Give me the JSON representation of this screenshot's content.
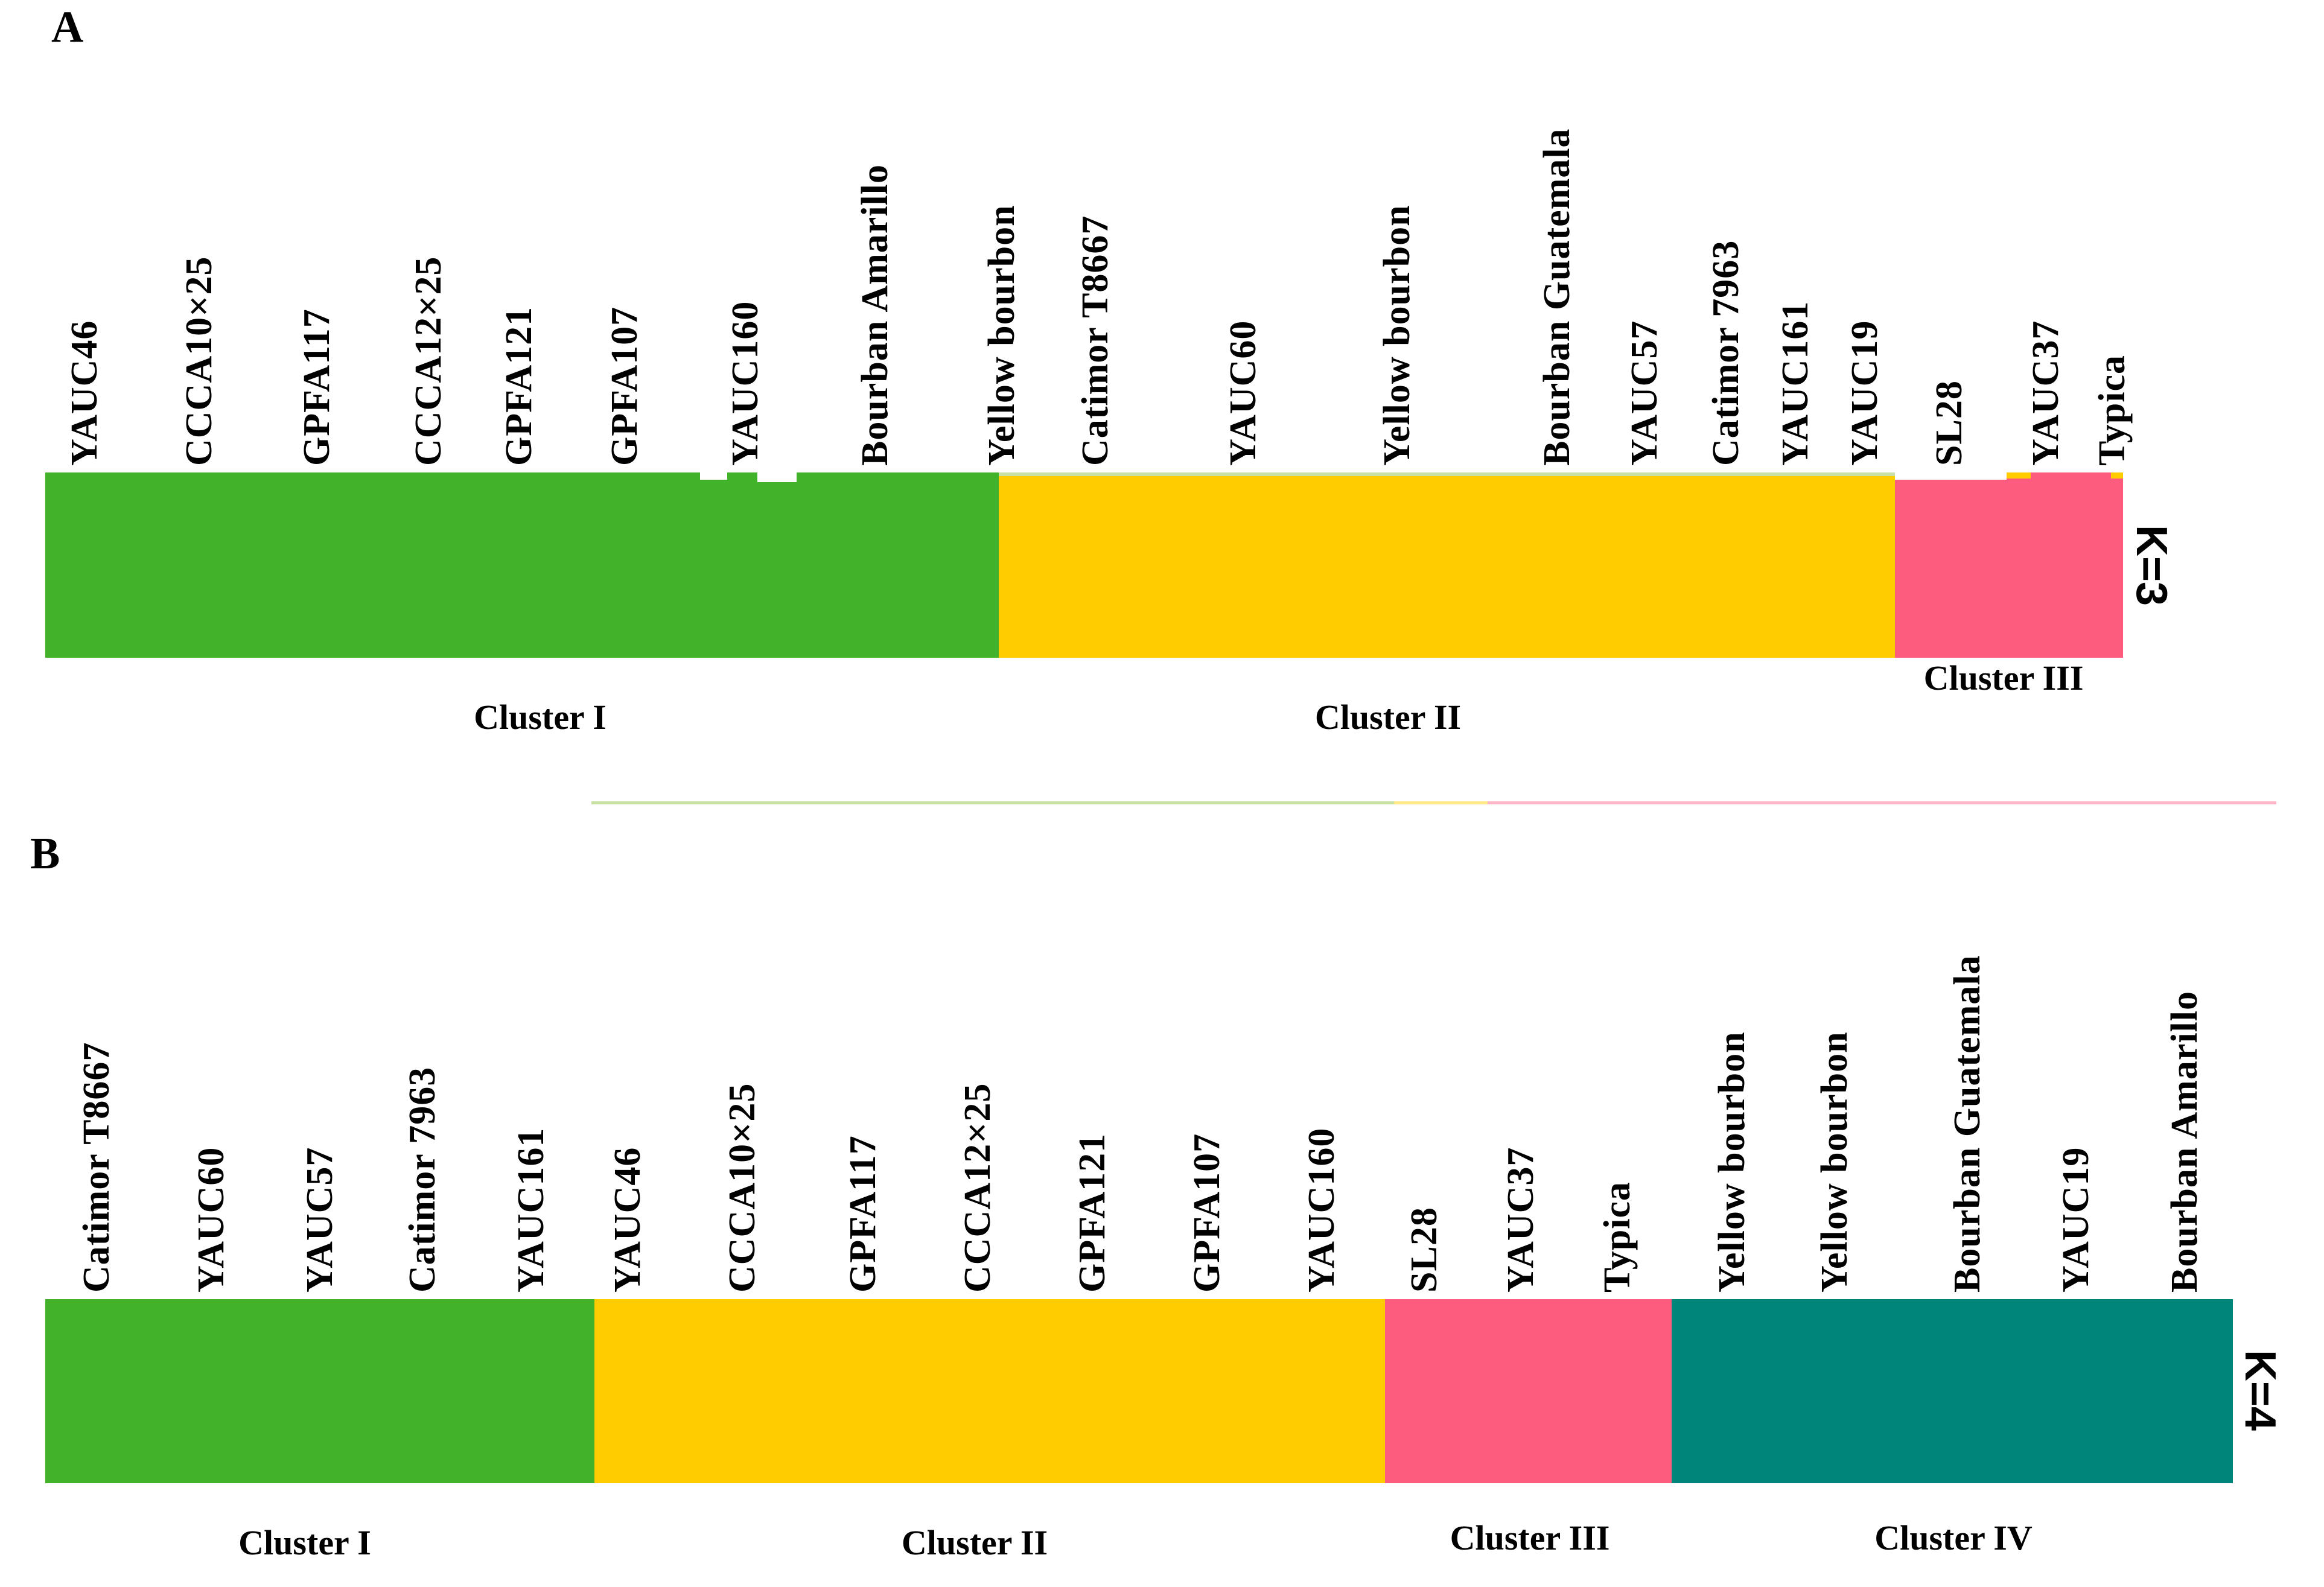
{
  "figure": {
    "colors": {
      "green": "#42b22b",
      "yellow": "#ffcc00",
      "pink": "#fd5c7f",
      "teal": "#00857b",
      "light_green": "#c9e0a4",
      "light_yellow": "#ffe785",
      "light_pink": "#ffb7c8",
      "white": "#ffffff"
    },
    "panel_a": {
      "letter": "A",
      "k_label": "K=3",
      "clusters": [
        {
          "label": "Cluster I",
          "color_key": "green",
          "samples": [
            "YAUC46",
            "CCCA10×25",
            "GPFA117",
            "CCCA12×25",
            "GPFA121",
            "GPFA107",
            "YAUC160",
            "Bourban Amarillo"
          ]
        },
        {
          "label": "Cluster II",
          "color_key": "yellow",
          "samples": [
            "Yellow bourbon",
            "Catimor T8667",
            "YAUC60",
            "Yellow bourbon",
            "Bourban Guatemala",
            "YAUC57",
            "Catimor 7963",
            "YAUC161",
            "YAUC19"
          ]
        },
        {
          "label": "Cluster III",
          "color_key": "pink",
          "samples": [
            "SL28",
            "YAUC37",
            "Typica"
          ]
        }
      ]
    },
    "panel_b": {
      "letter": "B",
      "k_label": "K=4",
      "clusters": [
        {
          "label": "Cluster I",
          "color_key": "green",
          "samples": [
            "Catimor T8667",
            "YAUC60",
            "YAUC57",
            "Catimor 7963",
            "YAUC161"
          ]
        },
        {
          "label": "Cluster II",
          "color_key": "yellow",
          "samples": [
            "YAUC46",
            "CCCA10×25",
            "GPFA117",
            "CCCA12×25",
            "GPFA121",
            "GPFA107",
            "YAUC160"
          ]
        },
        {
          "label": "Cluster III",
          "color_key": "pink",
          "samples": [
            "SL28",
            "YAUC37",
            "Typica"
          ]
        },
        {
          "label": "Cluster IV",
          "color_key": "teal",
          "samples": [
            "Yellow bourbon",
            "Yellow bourbon",
            "Bourban Guatemala",
            "YAUC19",
            "Bourban Amarillo"
          ]
        }
      ]
    }
  },
  "chart_data": [
    {
      "type": "bar",
      "title": "K=3",
      "categories": [
        "YAUC46",
        "CCCA10×25",
        "GPFA117",
        "CCCA12×25",
        "GPFA121",
        "GPFA107",
        "YAUC160",
        "Bourban Amarillo",
        "Yellow bourbon",
        "Catimor T8667",
        "YAUC60",
        "Yellow bourbon",
        "Bourban Guatemala",
        "YAUC57",
        "Catimor 7963",
        "YAUC161",
        "YAUC19",
        "SL28",
        "YAUC37",
        "Typica"
      ],
      "assignments": [
        "Cluster I",
        "Cluster I",
        "Cluster I",
        "Cluster I",
        "Cluster I",
        "Cluster I",
        "Cluster I",
        "Cluster I",
        "Cluster II",
        "Cluster II",
        "Cluster II",
        "Cluster II",
        "Cluster II",
        "Cluster II",
        "Cluster II",
        "Cluster II",
        "Cluster II",
        "Cluster III",
        "Cluster III",
        "Cluster III"
      ],
      "values": [
        1,
        1,
        1,
        1,
        1,
        1,
        1,
        1,
        2,
        2,
        2,
        2,
        2,
        2,
        2,
        2,
        2,
        3,
        3,
        3
      ],
      "series": [
        {
          "name": "Cluster I",
          "color": "#42b22b"
        },
        {
          "name": "Cluster II",
          "color": "#ffcc00"
        },
        {
          "name": "Cluster III",
          "color": "#fd5c7f"
        }
      ],
      "xlabel": "",
      "ylabel": "",
      "legend_position": "none",
      "grid": false
    },
    {
      "type": "bar",
      "title": "K=4",
      "categories": [
        "Catimor T8667",
        "YAUC60",
        "YAUC57",
        "Catimor 7963",
        "YAUC161",
        "YAUC46",
        "CCCA10×25",
        "GPFA117",
        "CCCA12×25",
        "GPFA121",
        "GPFA107",
        "YAUC160",
        "SL28",
        "YAUC37",
        "Typica",
        "Yellow bourbon",
        "Yellow bourbon",
        "Bourban Guatemala",
        "YAUC19",
        "Bourban Amarillo"
      ],
      "assignments": [
        "Cluster I",
        "Cluster I",
        "Cluster I",
        "Cluster I",
        "Cluster I",
        "Cluster II",
        "Cluster II",
        "Cluster II",
        "Cluster II",
        "Cluster II",
        "Cluster II",
        "Cluster II",
        "Cluster III",
        "Cluster III",
        "Cluster III",
        "Cluster IV",
        "Cluster IV",
        "Cluster IV",
        "Cluster IV",
        "Cluster IV"
      ],
      "values": [
        1,
        1,
        1,
        1,
        1,
        2,
        2,
        2,
        2,
        2,
        2,
        2,
        3,
        3,
        3,
        4,
        4,
        4,
        4,
        4
      ],
      "series": [
        {
          "name": "Cluster I",
          "color": "#42b22b"
        },
        {
          "name": "Cluster II",
          "color": "#ffcc00"
        },
        {
          "name": "Cluster III",
          "color": "#fd5c7f"
        },
        {
          "name": "Cluster IV",
          "color": "#00857b"
        }
      ],
      "xlabel": "",
      "ylabel": "",
      "legend_position": "none",
      "grid": false
    }
  ]
}
